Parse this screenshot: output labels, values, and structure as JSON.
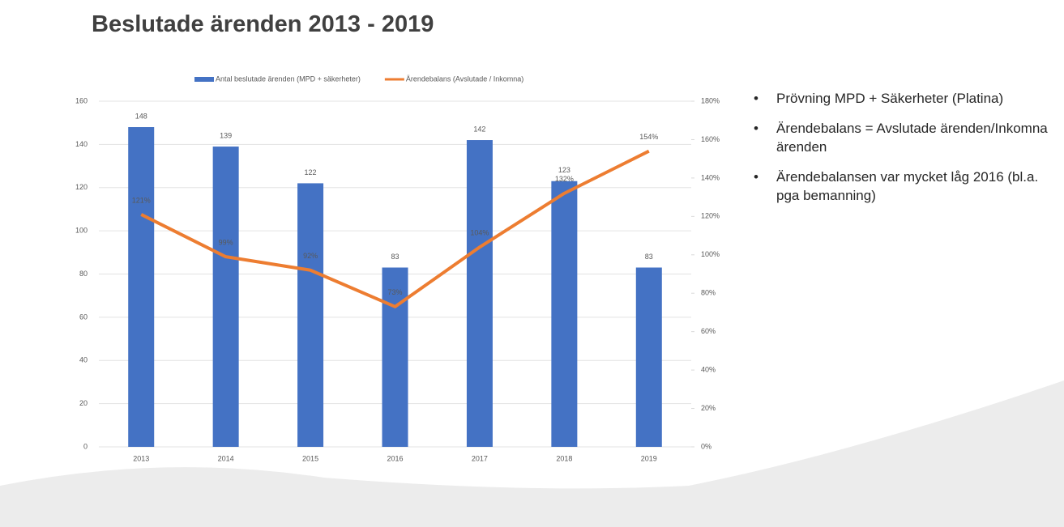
{
  "chart_data": {
    "type": "bar-line",
    "title": "Beslutade ärenden 2013 - 2019",
    "categories": [
      "2013",
      "2014",
      "2015",
      "2016",
      "2017",
      "2018",
      "2019"
    ],
    "series": [
      {
        "name": "Antal beslutade ärenden (MPD + säkerheter)",
        "color": "#4472c4",
        "type": "bar",
        "values": [
          148,
          139,
          122,
          83,
          142,
          123,
          83
        ]
      },
      {
        "name": "Ärendebalans (Avslutade / Inkomna)",
        "color": "#ed7d31",
        "type": "line",
        "axis": "y2",
        "values": [
          121,
          99,
          92,
          73,
          104,
          132,
          154
        ],
        "value_labels": [
          "121%",
          "99%",
          "92%",
          "73%",
          "104%",
          "132%",
          "154%"
        ]
      }
    ],
    "ylim": [
      0,
      160
    ],
    "yticks": [
      0,
      20,
      40,
      60,
      80,
      100,
      120,
      140,
      160
    ],
    "y2lim": [
      0,
      180
    ],
    "y2ticks": [
      {
        "value": 0,
        "label": "0%"
      },
      {
        "value": 20,
        "label": "20%"
      },
      {
        "value": 40,
        "label": "40%"
      },
      {
        "value": 60,
        "label": "60%"
      },
      {
        "value": 80,
        "label": "80%"
      },
      {
        "value": 100,
        "label": "100%"
      },
      {
        "value": 120,
        "label": "120%"
      },
      {
        "value": 140,
        "label": "140%"
      },
      {
        "value": 160,
        "label": "160%"
      },
      {
        "value": 180,
        "label": "180%"
      }
    ],
    "grid": true,
    "legend": "top"
  },
  "bullets": [
    "Prövning MPD + Säkerheter (Platina)",
    "Ärendebalans = Avslutade ärenden/Inkomna ärenden",
    "Ärendebalansen var mycket låg 2016 (bl.a. pga bemanning)"
  ]
}
